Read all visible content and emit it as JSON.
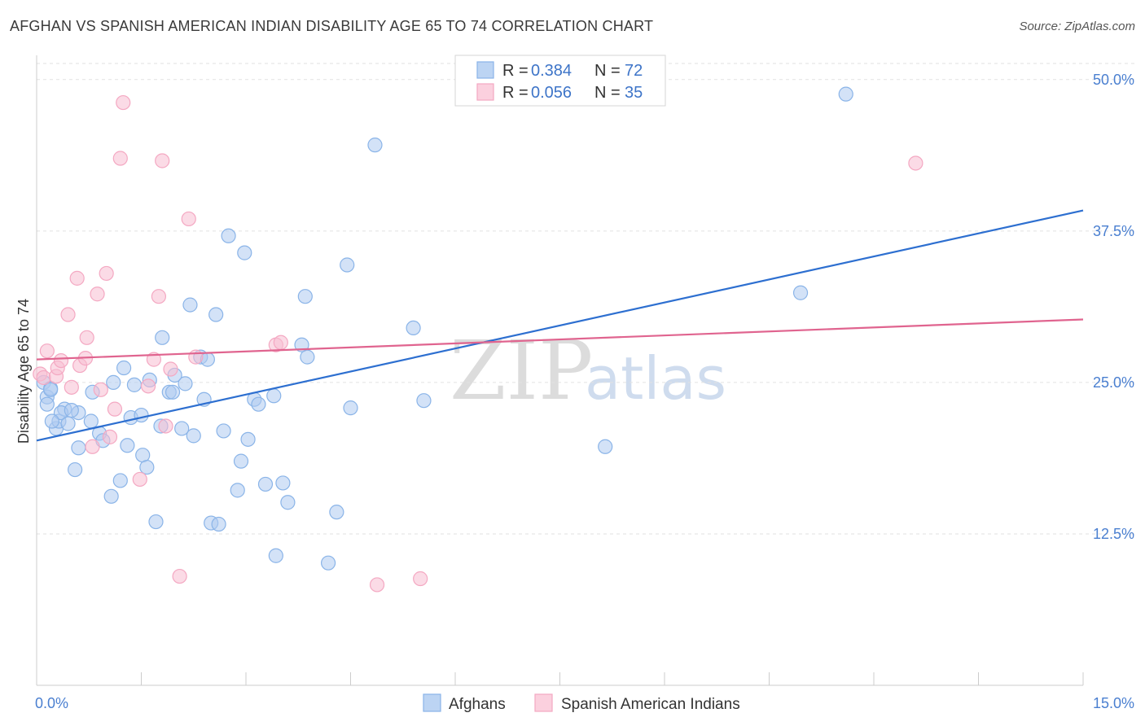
{
  "title": "AFGHAN VS SPANISH AMERICAN INDIAN DISABILITY AGE 65 TO 74 CORRELATION CHART",
  "source": "Source: ZipAtlas.com",
  "watermark": {
    "zip": "ZIP",
    "atlas": "atlas"
  },
  "chart_data": {
    "type": "scatter",
    "ylabel": "Disability Age 65 to 74",
    "xlim": [
      0,
      15
    ],
    "ylim": [
      0,
      52
    ],
    "yticks": [
      {
        "value": 12.5,
        "label": "12.5%"
      },
      {
        "value": 25.0,
        "label": "25.0%"
      },
      {
        "value": 37.5,
        "label": "37.5%"
      },
      {
        "value": 50.0,
        "label": "50.0%"
      }
    ],
    "xtick_labels": {
      "min": "0.0%",
      "max": "15.0%"
    },
    "xtick_values": [
      0,
      1.5,
      3,
      4.5,
      6,
      7.5,
      9,
      10.5,
      12,
      13.5,
      15
    ],
    "legend": [
      {
        "r_label": "R =",
        "r_value": "0.384",
        "n_label": "N =",
        "n_value": "72"
      },
      {
        "r_label": "R =",
        "r_value": "0.056",
        "n_label": "N =",
        "n_value": "35"
      }
    ],
    "series": [
      {
        "name": "Afghans",
        "color": "#8ab4e8",
        "line_color": "#2d6fd0",
        "trend": {
          "x": [
            0,
            15
          ],
          "y": [
            20.2,
            39.2
          ]
        },
        "points": [
          [
            0.1,
            25.0
          ],
          [
            0.15,
            23.8
          ],
          [
            0.2,
            24.5
          ],
          [
            0.15,
            23.2
          ],
          [
            0.28,
            21.2
          ],
          [
            0.32,
            21.8
          ],
          [
            0.4,
            22.8
          ],
          [
            0.35,
            22.5
          ],
          [
            0.45,
            21.6
          ],
          [
            0.6,
            22.5
          ],
          [
            0.55,
            17.8
          ],
          [
            0.6,
            19.6
          ],
          [
            0.78,
            21.8
          ],
          [
            0.8,
            24.2
          ],
          [
            0.9,
            20.8
          ],
          [
            0.95,
            20.2
          ],
          [
            1.1,
            25.0
          ],
          [
            1.07,
            15.6
          ],
          [
            1.2,
            16.9
          ],
          [
            1.25,
            26.2
          ],
          [
            1.3,
            19.8
          ],
          [
            1.35,
            22.1
          ],
          [
            1.4,
            24.8
          ],
          [
            1.5,
            22.3
          ],
          [
            1.52,
            19.0
          ],
          [
            1.58,
            18.0
          ],
          [
            1.62,
            25.2
          ],
          [
            1.71,
            13.5
          ],
          [
            1.78,
            21.4
          ],
          [
            1.8,
            28.7
          ],
          [
            1.9,
            24.2
          ],
          [
            1.95,
            24.2
          ],
          [
            1.98,
            25.6
          ],
          [
            2.08,
            21.2
          ],
          [
            2.13,
            24.9
          ],
          [
            2.2,
            31.4
          ],
          [
            2.25,
            20.6
          ],
          [
            2.35,
            27.1
          ],
          [
            2.4,
            23.6
          ],
          [
            2.45,
            26.9
          ],
          [
            2.5,
            13.4
          ],
          [
            2.57,
            30.6
          ],
          [
            2.61,
            13.3
          ],
          [
            2.68,
            21.0
          ],
          [
            2.75,
            37.1
          ],
          [
            2.88,
            16.1
          ],
          [
            2.93,
            18.5
          ],
          [
            2.98,
            35.7
          ],
          [
            3.03,
            20.3
          ],
          [
            3.12,
            23.6
          ],
          [
            3.18,
            23.2
          ],
          [
            3.28,
            16.6
          ],
          [
            3.4,
            23.9
          ],
          [
            3.43,
            10.7
          ],
          [
            3.53,
            16.7
          ],
          [
            3.6,
            15.1
          ],
          [
            3.8,
            28.1
          ],
          [
            3.85,
            32.1
          ],
          [
            3.88,
            27.1
          ],
          [
            4.18,
            10.1
          ],
          [
            4.3,
            14.3
          ],
          [
            4.45,
            34.7
          ],
          [
            4.5,
            22.9
          ],
          [
            4.85,
            44.6
          ],
          [
            5.4,
            29.5
          ],
          [
            5.55,
            23.5
          ],
          [
            8.15,
            19.7
          ],
          [
            10.95,
            32.4
          ],
          [
            11.6,
            48.8
          ],
          [
            0.2,
            24.4
          ],
          [
            0.22,
            21.8
          ],
          [
            0.5,
            22.7
          ]
        ]
      },
      {
        "name": "Spanish American Indians",
        "color": "#f4a8c2",
        "line_color": "#e0648f",
        "trend": {
          "x": [
            0,
            15
          ],
          "y": [
            26.9,
            30.2
          ]
        },
        "points": [
          [
            0.05,
            25.7
          ],
          [
            0.1,
            25.4
          ],
          [
            0.15,
            27.6
          ],
          [
            0.28,
            25.5
          ],
          [
            0.3,
            26.2
          ],
          [
            0.35,
            26.8
          ],
          [
            0.45,
            30.6
          ],
          [
            0.5,
            24.6
          ],
          [
            0.58,
            33.6
          ],
          [
            0.62,
            26.4
          ],
          [
            0.7,
            27.0
          ],
          [
            0.72,
            28.7
          ],
          [
            0.8,
            19.7
          ],
          [
            0.87,
            32.3
          ],
          [
            0.92,
            24.4
          ],
          [
            1.0,
            34.0
          ],
          [
            1.05,
            20.5
          ],
          [
            1.12,
            22.8
          ],
          [
            1.2,
            43.5
          ],
          [
            1.24,
            48.1
          ],
          [
            1.48,
            17.0
          ],
          [
            1.6,
            24.7
          ],
          [
            1.68,
            26.9
          ],
          [
            1.75,
            32.1
          ],
          [
            1.8,
            43.3
          ],
          [
            1.85,
            21.4
          ],
          [
            1.92,
            26.1
          ],
          [
            2.05,
            9.0
          ],
          [
            2.18,
            38.5
          ],
          [
            2.28,
            27.1
          ],
          [
            3.43,
            28.1
          ],
          [
            3.5,
            28.3
          ],
          [
            4.88,
            8.3
          ],
          [
            5.5,
            8.8
          ],
          [
            12.6,
            43.1
          ]
        ]
      }
    ]
  }
}
